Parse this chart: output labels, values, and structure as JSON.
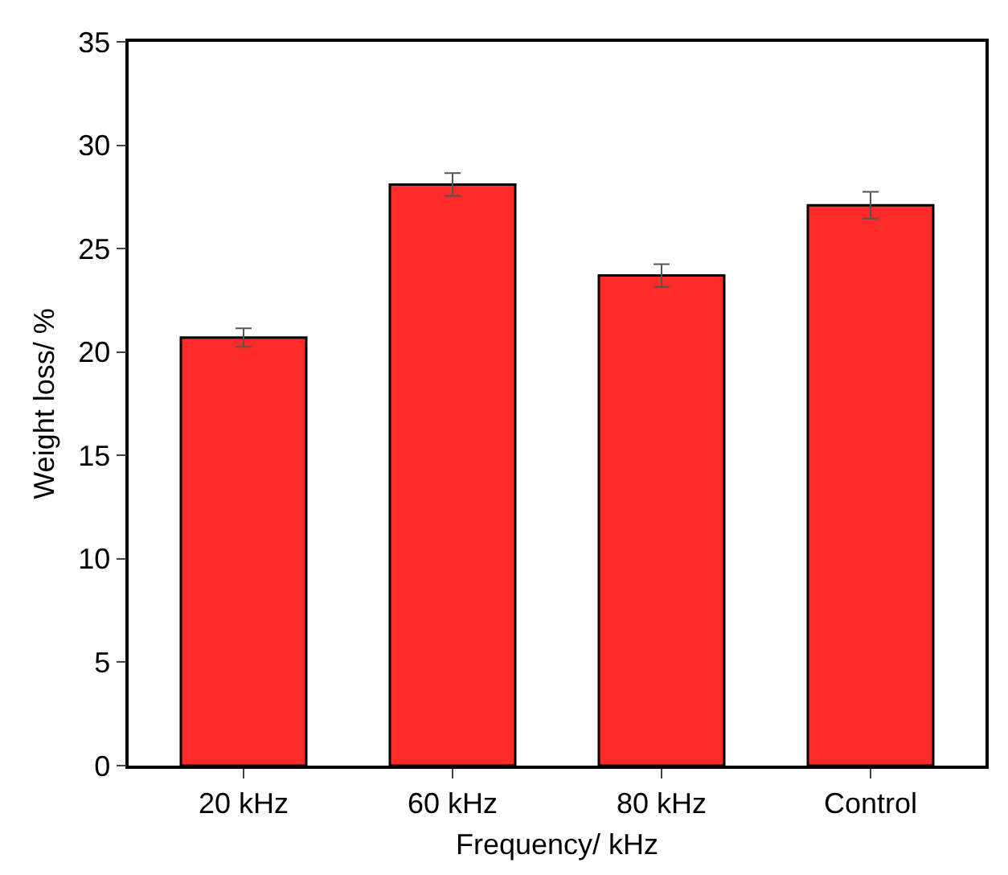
{
  "chart_data": {
    "type": "bar",
    "xlabel": "Frequency/ kHz",
    "ylabel": "Weight loss/ %",
    "categories": [
      "20 kHz",
      "60 kHz",
      "80 kHz",
      "Control"
    ],
    "values": [
      20.7,
      28.1,
      23.7,
      27.1
    ],
    "errors": [
      0.45,
      0.55,
      0.55,
      0.65
    ],
    "color": "#ff2a2a",
    "ylim": [
      0,
      35
    ],
    "yticks": [
      0,
      5,
      10,
      15,
      20,
      25,
      30,
      35
    ]
  }
}
